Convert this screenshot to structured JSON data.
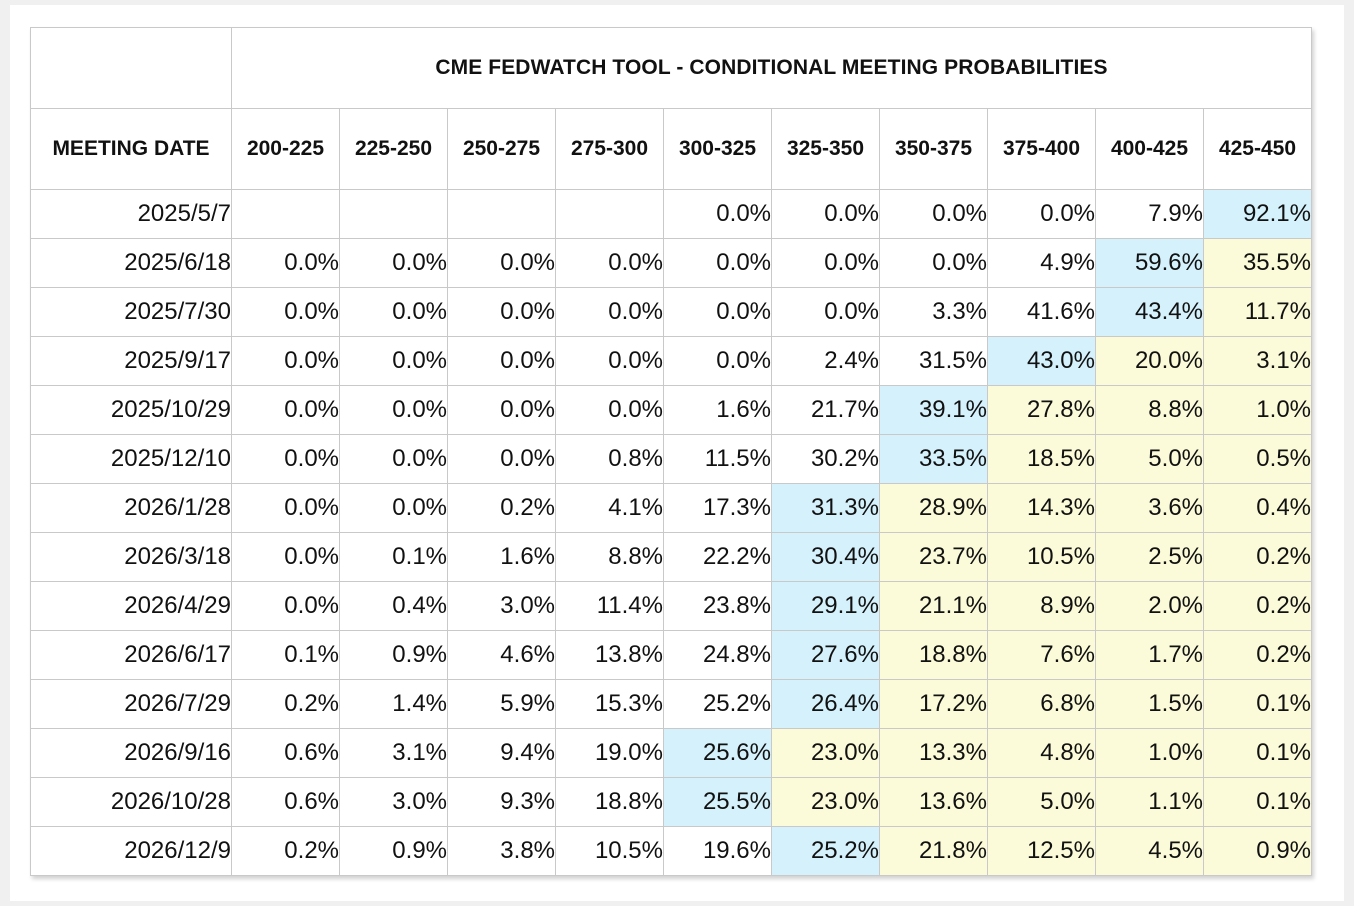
{
  "chart_data": {
    "type": "table",
    "title": "CME FEDWATCH TOOL - CONDITIONAL MEETING PROBABILITIES",
    "row_header_label": "MEETING DATE",
    "columns": [
      "200-225",
      "225-250",
      "250-275",
      "275-300",
      "300-325",
      "325-350",
      "350-375",
      "375-400",
      "400-425",
      "425-450"
    ],
    "colors": {
      "highlight_max": "#d5f1fc",
      "highlight_above": "#fbfbd9",
      "border": "#c9c9c9"
    },
    "rows": [
      {
        "date": "2025/5/7",
        "values": [
          "",
          "",
          "",
          "",
          "0.0%",
          "0.0%",
          "0.0%",
          "0.0%",
          "7.9%",
          "92.1%"
        ],
        "max_col": 9
      },
      {
        "date": "2025/6/18",
        "values": [
          "0.0%",
          "0.0%",
          "0.0%",
          "0.0%",
          "0.0%",
          "0.0%",
          "0.0%",
          "4.9%",
          "59.6%",
          "35.5%"
        ],
        "max_col": 8
      },
      {
        "date": "2025/7/30",
        "values": [
          "0.0%",
          "0.0%",
          "0.0%",
          "0.0%",
          "0.0%",
          "0.0%",
          "3.3%",
          "41.6%",
          "43.4%",
          "11.7%"
        ],
        "max_col": 8
      },
      {
        "date": "2025/9/17",
        "values": [
          "0.0%",
          "0.0%",
          "0.0%",
          "0.0%",
          "0.0%",
          "2.4%",
          "31.5%",
          "43.0%",
          "20.0%",
          "3.1%"
        ],
        "max_col": 7
      },
      {
        "date": "2025/10/29",
        "values": [
          "0.0%",
          "0.0%",
          "0.0%",
          "0.0%",
          "1.6%",
          "21.7%",
          "39.1%",
          "27.8%",
          "8.8%",
          "1.0%"
        ],
        "max_col": 6
      },
      {
        "date": "2025/12/10",
        "values": [
          "0.0%",
          "0.0%",
          "0.0%",
          "0.8%",
          "11.5%",
          "30.2%",
          "33.5%",
          "18.5%",
          "5.0%",
          "0.5%"
        ],
        "max_col": 6
      },
      {
        "date": "2026/1/28",
        "values": [
          "0.0%",
          "0.0%",
          "0.2%",
          "4.1%",
          "17.3%",
          "31.3%",
          "28.9%",
          "14.3%",
          "3.6%",
          "0.4%"
        ],
        "max_col": 5
      },
      {
        "date": "2026/3/18",
        "values": [
          "0.0%",
          "0.1%",
          "1.6%",
          "8.8%",
          "22.2%",
          "30.4%",
          "23.7%",
          "10.5%",
          "2.5%",
          "0.2%"
        ],
        "max_col": 5
      },
      {
        "date": "2026/4/29",
        "values": [
          "0.0%",
          "0.4%",
          "3.0%",
          "11.4%",
          "23.8%",
          "29.1%",
          "21.1%",
          "8.9%",
          "2.0%",
          "0.2%"
        ],
        "max_col": 5
      },
      {
        "date": "2026/6/17",
        "values": [
          "0.1%",
          "0.9%",
          "4.6%",
          "13.8%",
          "24.8%",
          "27.6%",
          "18.8%",
          "7.6%",
          "1.7%",
          "0.2%"
        ],
        "max_col": 5
      },
      {
        "date": "2026/7/29",
        "values": [
          "0.2%",
          "1.4%",
          "5.9%",
          "15.3%",
          "25.2%",
          "26.4%",
          "17.2%",
          "6.8%",
          "1.5%",
          "0.1%"
        ],
        "max_col": 5
      },
      {
        "date": "2026/9/16",
        "values": [
          "0.6%",
          "3.1%",
          "9.4%",
          "19.0%",
          "25.6%",
          "23.0%",
          "13.3%",
          "4.8%",
          "1.0%",
          "0.1%"
        ],
        "max_col": 4
      },
      {
        "date": "2026/10/28",
        "values": [
          "0.6%",
          "3.0%",
          "9.3%",
          "18.8%",
          "25.5%",
          "23.0%",
          "13.6%",
          "5.0%",
          "1.1%",
          "0.1%"
        ],
        "max_col": 4
      },
      {
        "date": "2026/12/9",
        "values": [
          "0.2%",
          "0.9%",
          "3.8%",
          "10.5%",
          "19.6%",
          "25.2%",
          "21.8%",
          "12.5%",
          "4.5%",
          "0.9%"
        ],
        "max_col": 5
      }
    ]
  }
}
